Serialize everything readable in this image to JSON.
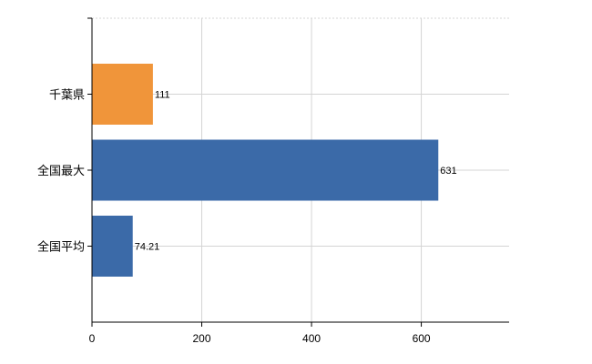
{
  "chart_data": {
    "type": "bar",
    "orientation": "horizontal",
    "categories": [
      "千葉県",
      "全国最大",
      "全国平均"
    ],
    "values": [
      111,
      631,
      74.21
    ],
    "value_labels": [
      "111",
      "631",
      "74.21"
    ],
    "bar_colors": [
      "#f0953a",
      "#3b6aa8",
      "#3b6aa8"
    ],
    "title": "",
    "xlabel": "",
    "ylabel": "",
    "xlim": [
      0,
      760
    ],
    "x_ticks": [
      0,
      200,
      400,
      600
    ],
    "x_tick_labels": [
      "0",
      "200",
      "400",
      "600"
    ],
    "grid": true,
    "legend": "none"
  }
}
